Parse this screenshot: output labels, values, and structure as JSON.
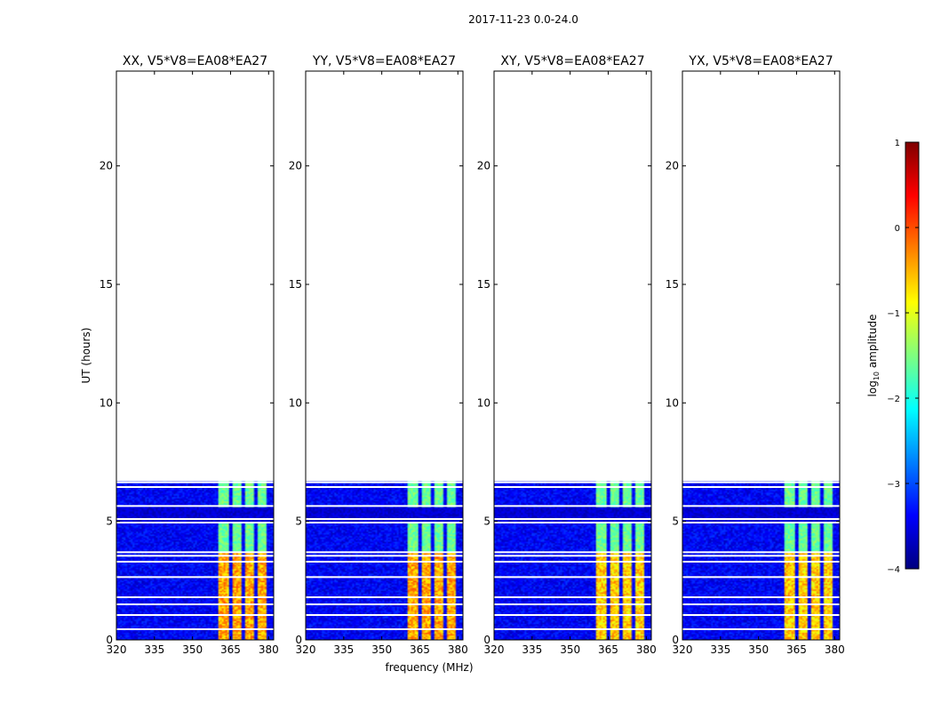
{
  "figure": {
    "suptitle": "2017-11-23 0.0-24.0",
    "xlabel": "frequency (MHz)",
    "ylabel": "UT (hours)"
  },
  "colorbar": {
    "label_prefix": "log",
    "label_sub": "10",
    "label_suffix": " amplitude",
    "range": [
      -4,
      1
    ],
    "ticks": [
      1,
      0,
      -1,
      -2,
      -3,
      -4
    ],
    "colormap": "jet",
    "stops": [
      "#00007f",
      "#0000ff",
      "#007fff",
      "#00ffff",
      "#7fff7f",
      "#ffff00",
      "#ff7f00",
      "#ff0000",
      "#7f0000"
    ]
  },
  "chart_data": [
    {
      "type": "heatmap",
      "title": "XX, V5*V8=EA08*EA27",
      "xlim": [
        320,
        382
      ],
      "ylim": [
        0,
        24
      ],
      "xticks": [
        320,
        335,
        350,
        365,
        380
      ],
      "yticks": [
        0,
        5,
        10,
        15,
        20
      ],
      "data_range_hours": [
        0,
        6.7
      ],
      "rfi_band_mhz": [
        360,
        380
      ],
      "rfi_subbands_mhz": [
        [
          360,
          364.5
        ],
        [
          365.5,
          369.5
        ],
        [
          370.5,
          374.5
        ],
        [
          375.5,
          379.5
        ]
      ],
      "gap_rows_hours": [
        0.45,
        1.05,
        1.5,
        1.8,
        2.65,
        3.3,
        3.55,
        3.7,
        4.95,
        5.1,
        5.65,
        6.45,
        6.65
      ]
    },
    {
      "type": "heatmap",
      "title": "YY, V5*V8=EA08*EA27",
      "xlim": [
        320,
        382
      ],
      "ylim": [
        0,
        24
      ],
      "xticks": [
        320,
        335,
        350,
        365,
        380
      ],
      "yticks": [
        0,
        5,
        10,
        15,
        20
      ],
      "data_range_hours": [
        0,
        6.7
      ],
      "rfi_band_mhz": [
        360,
        380
      ],
      "rfi_subbands_mhz": [
        [
          360,
          364.5
        ],
        [
          365.5,
          369.5
        ],
        [
          370.5,
          374.5
        ],
        [
          375.5,
          379.5
        ]
      ],
      "gap_rows_hours": [
        0.45,
        1.05,
        1.5,
        1.8,
        2.65,
        3.3,
        3.55,
        3.7,
        4.95,
        5.1,
        5.65,
        6.45,
        6.65
      ]
    },
    {
      "type": "heatmap",
      "title": "XY, V5*V8=EA08*EA27",
      "xlim": [
        320,
        382
      ],
      "ylim": [
        0,
        24
      ],
      "xticks": [
        320,
        335,
        350,
        365,
        380
      ],
      "yticks": [
        0,
        5,
        10,
        15,
        20
      ],
      "data_range_hours": [
        0,
        6.7
      ],
      "rfi_band_mhz": [
        360,
        380
      ],
      "rfi_subbands_mhz": [
        [
          360,
          364.5
        ],
        [
          365.5,
          369.5
        ],
        [
          370.5,
          374.5
        ],
        [
          375.5,
          379.5
        ]
      ],
      "gap_rows_hours": [
        0.45,
        1.05,
        1.5,
        1.8,
        2.65,
        3.3,
        3.55,
        3.7,
        4.95,
        5.1,
        5.65,
        6.45,
        6.65
      ]
    },
    {
      "type": "heatmap",
      "title": "YX, V5*V8=EA08*EA27",
      "xlim": [
        320,
        382
      ],
      "ylim": [
        0,
        24
      ],
      "xticks": [
        320,
        335,
        350,
        365,
        380
      ],
      "yticks": [
        0,
        5,
        10,
        15,
        20
      ],
      "data_range_hours": [
        0,
        6.7
      ],
      "rfi_band_mhz": [
        360,
        380
      ],
      "rfi_subbands_mhz": [
        [
          360,
          364.5
        ],
        [
          365.5,
          369.5
        ],
        [
          370.5,
          374.5
        ],
        [
          375.5,
          379.5
        ]
      ],
      "gap_rows_hours": [
        0.45,
        1.05,
        1.5,
        1.8,
        2.65,
        3.3,
        3.55,
        3.7,
        4.95,
        5.1,
        5.65,
        6.45,
        6.65
      ]
    }
  ]
}
